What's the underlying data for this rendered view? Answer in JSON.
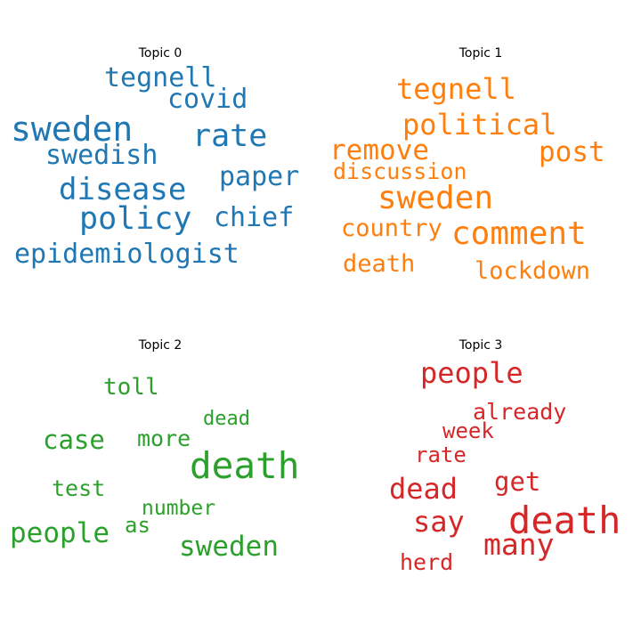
{
  "topics": [
    {
      "title": "Topic 0",
      "color": "#1f77b4",
      "words": [
        "tegnell",
        "covid",
        "sweden",
        "rate",
        "swedish",
        "paper",
        "disease",
        "policy",
        "chief",
        "epidemiologist"
      ]
    },
    {
      "title": "Topic 1",
      "color": "#ff7f0e",
      "words": [
        "tegnell",
        "political",
        "remove",
        "post",
        "discussion",
        "sweden",
        "country",
        "comment",
        "death",
        "lockdown"
      ]
    },
    {
      "title": "Topic 2",
      "color": "#2ca02c",
      "words": [
        "toll",
        "dead",
        "case",
        "more",
        "death",
        "test",
        "number",
        "as",
        "people",
        "sweden"
      ]
    },
    {
      "title": "Topic 3",
      "color": "#d62728",
      "words": [
        "people",
        "already",
        "week",
        "rate",
        "get",
        "dead",
        "say",
        "death",
        "many",
        "herd"
      ]
    }
  ]
}
